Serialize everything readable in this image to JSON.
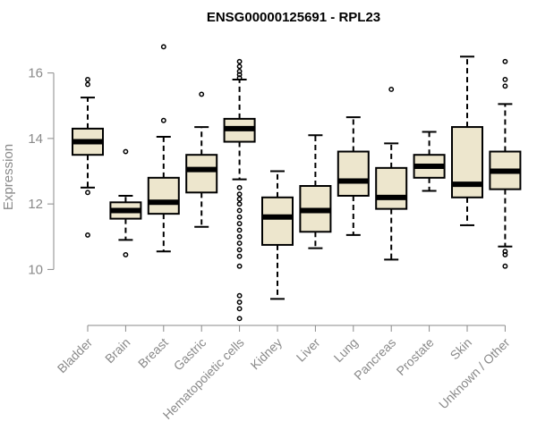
{
  "chart_data": {
    "type": "boxplot",
    "title": "ENSG00000125691 - RPL23",
    "ylabel": "Expression",
    "xlabel": "",
    "ylim": [
      8.4,
      17.0
    ],
    "yticks": [
      10,
      12,
      14,
      16
    ],
    "box_fill": "#ede6cd",
    "categories": [
      "Bladder",
      "Brain",
      "Breast",
      "Gastric",
      "Hematopoietic cells",
      "Kidney",
      "Liver",
      "Lung",
      "Pancreas",
      "Prostate",
      "Skin",
      "Unknown / Other"
    ],
    "boxes": [
      {
        "name": "Bladder",
        "min": 12.5,
        "q1": 13.5,
        "median": 13.9,
        "q3": 14.3,
        "max": 15.25,
        "outliers": [
          15.8,
          15.65,
          12.35,
          11.05
        ]
      },
      {
        "name": "Brain",
        "min": 10.9,
        "q1": 11.55,
        "median": 11.8,
        "q3": 12.05,
        "max": 12.25,
        "outliers": [
          13.6,
          10.45
        ]
      },
      {
        "name": "Breast",
        "min": 10.55,
        "q1": 11.7,
        "median": 12.05,
        "q3": 12.8,
        "max": 14.05,
        "outliers": [
          16.8,
          14.55
        ]
      },
      {
        "name": "Gastric",
        "min": 11.3,
        "q1": 12.35,
        "median": 13.05,
        "q3": 13.5,
        "max": 14.35,
        "outliers": [
          15.35
        ]
      },
      {
        "name": "Hematopoietic cells",
        "min": 12.75,
        "q1": 13.9,
        "median": 14.3,
        "q3": 14.6,
        "max": 15.8,
        "outliers": [
          16.35,
          16.2,
          16.05,
          15.95,
          15.85,
          12.5,
          12.3,
          12.15,
          12.0,
          11.8,
          11.6,
          11.4,
          11.2,
          11.0,
          10.8,
          10.6,
          10.4,
          10.1,
          9.2,
          9.0,
          8.8,
          8.5
        ]
      },
      {
        "name": "Kidney",
        "min": 9.1,
        "q1": 10.75,
        "median": 11.6,
        "q3": 12.2,
        "max": 13.0,
        "outliers": []
      },
      {
        "name": "Liver",
        "min": 10.65,
        "q1": 11.15,
        "median": 11.8,
        "q3": 12.55,
        "max": 14.1,
        "outliers": []
      },
      {
        "name": "Lung",
        "min": 11.05,
        "q1": 12.25,
        "median": 12.7,
        "q3": 13.6,
        "max": 14.65,
        "outliers": []
      },
      {
        "name": "Pancreas",
        "min": 10.3,
        "q1": 11.85,
        "median": 12.2,
        "q3": 13.1,
        "max": 13.85,
        "outliers": [
          15.5
        ]
      },
      {
        "name": "Prostate",
        "min": 12.4,
        "q1": 12.8,
        "median": 13.15,
        "q3": 13.5,
        "max": 14.2,
        "outliers": []
      },
      {
        "name": "Skin",
        "min": 11.35,
        "q1": 12.2,
        "median": 12.6,
        "q3": 14.35,
        "max": 16.5,
        "outliers": []
      },
      {
        "name": "Unknown / Other",
        "min": 10.7,
        "q1": 12.45,
        "median": 13.0,
        "q3": 13.6,
        "max": 15.05,
        "outliers": [
          16.35,
          15.8,
          15.6,
          10.55,
          10.45,
          10.1
        ]
      }
    ]
  }
}
